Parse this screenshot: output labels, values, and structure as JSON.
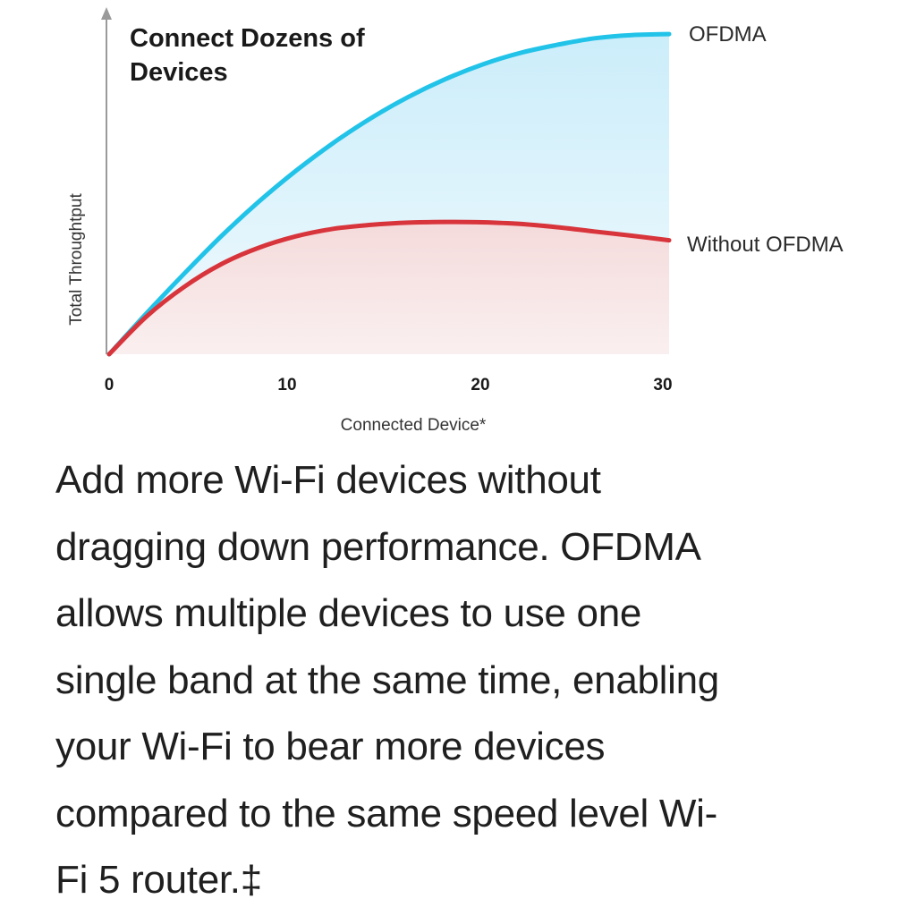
{
  "chart_data": {
    "type": "area",
    "title": "Connect Dozens of Devices",
    "title_lines": [
      "Connect Dozens of",
      "Devices"
    ],
    "xlabel": "Connected Device*",
    "ylabel": "Total Throughtput",
    "x_ticks": [
      "0",
      "10",
      "20",
      "30"
    ],
    "xlim": [
      0,
      30
    ],
    "ylim": [
      0,
      100
    ],
    "y_ticks_shown": false,
    "grid": false,
    "legend": "inline-right",
    "series": [
      {
        "name": "OFDMA",
        "color": "#22c3e8",
        "fill": "#d6f1fb",
        "x": [
          0,
          2,
          4,
          6,
          8,
          10,
          12,
          14,
          16,
          18,
          20,
          22,
          24,
          26,
          28,
          30
        ],
        "values": [
          0,
          12.5,
          24.5,
          36,
          46.5,
          56,
          64.5,
          72,
          78.5,
          84,
          88.5,
          92,
          94.5,
          96.5,
          97.5,
          97.8
        ]
      },
      {
        "name": "Without OFDMA",
        "color": "#d8343b",
        "fill": "#f7dede",
        "x": [
          0,
          2,
          4,
          6,
          8,
          10,
          12,
          14,
          16,
          18,
          20,
          22,
          24,
          26,
          28,
          30
        ],
        "values": [
          0,
          11.5,
          20.5,
          27.5,
          32.5,
          36,
          38.3,
          39.5,
          40.2,
          40.4,
          40.3,
          39.8,
          38.8,
          37.5,
          36.2,
          34.8
        ]
      }
    ]
  },
  "description_lines": [
    "Add more Wi-Fi devices without",
    "dragging down performance. OFDMA",
    "allows multiple devices to use one",
    "single band at the same time, enabling",
    "your Wi-Fi to bear more devices",
    "compared to the same speed level Wi-",
    "Fi 5 router.‡"
  ]
}
